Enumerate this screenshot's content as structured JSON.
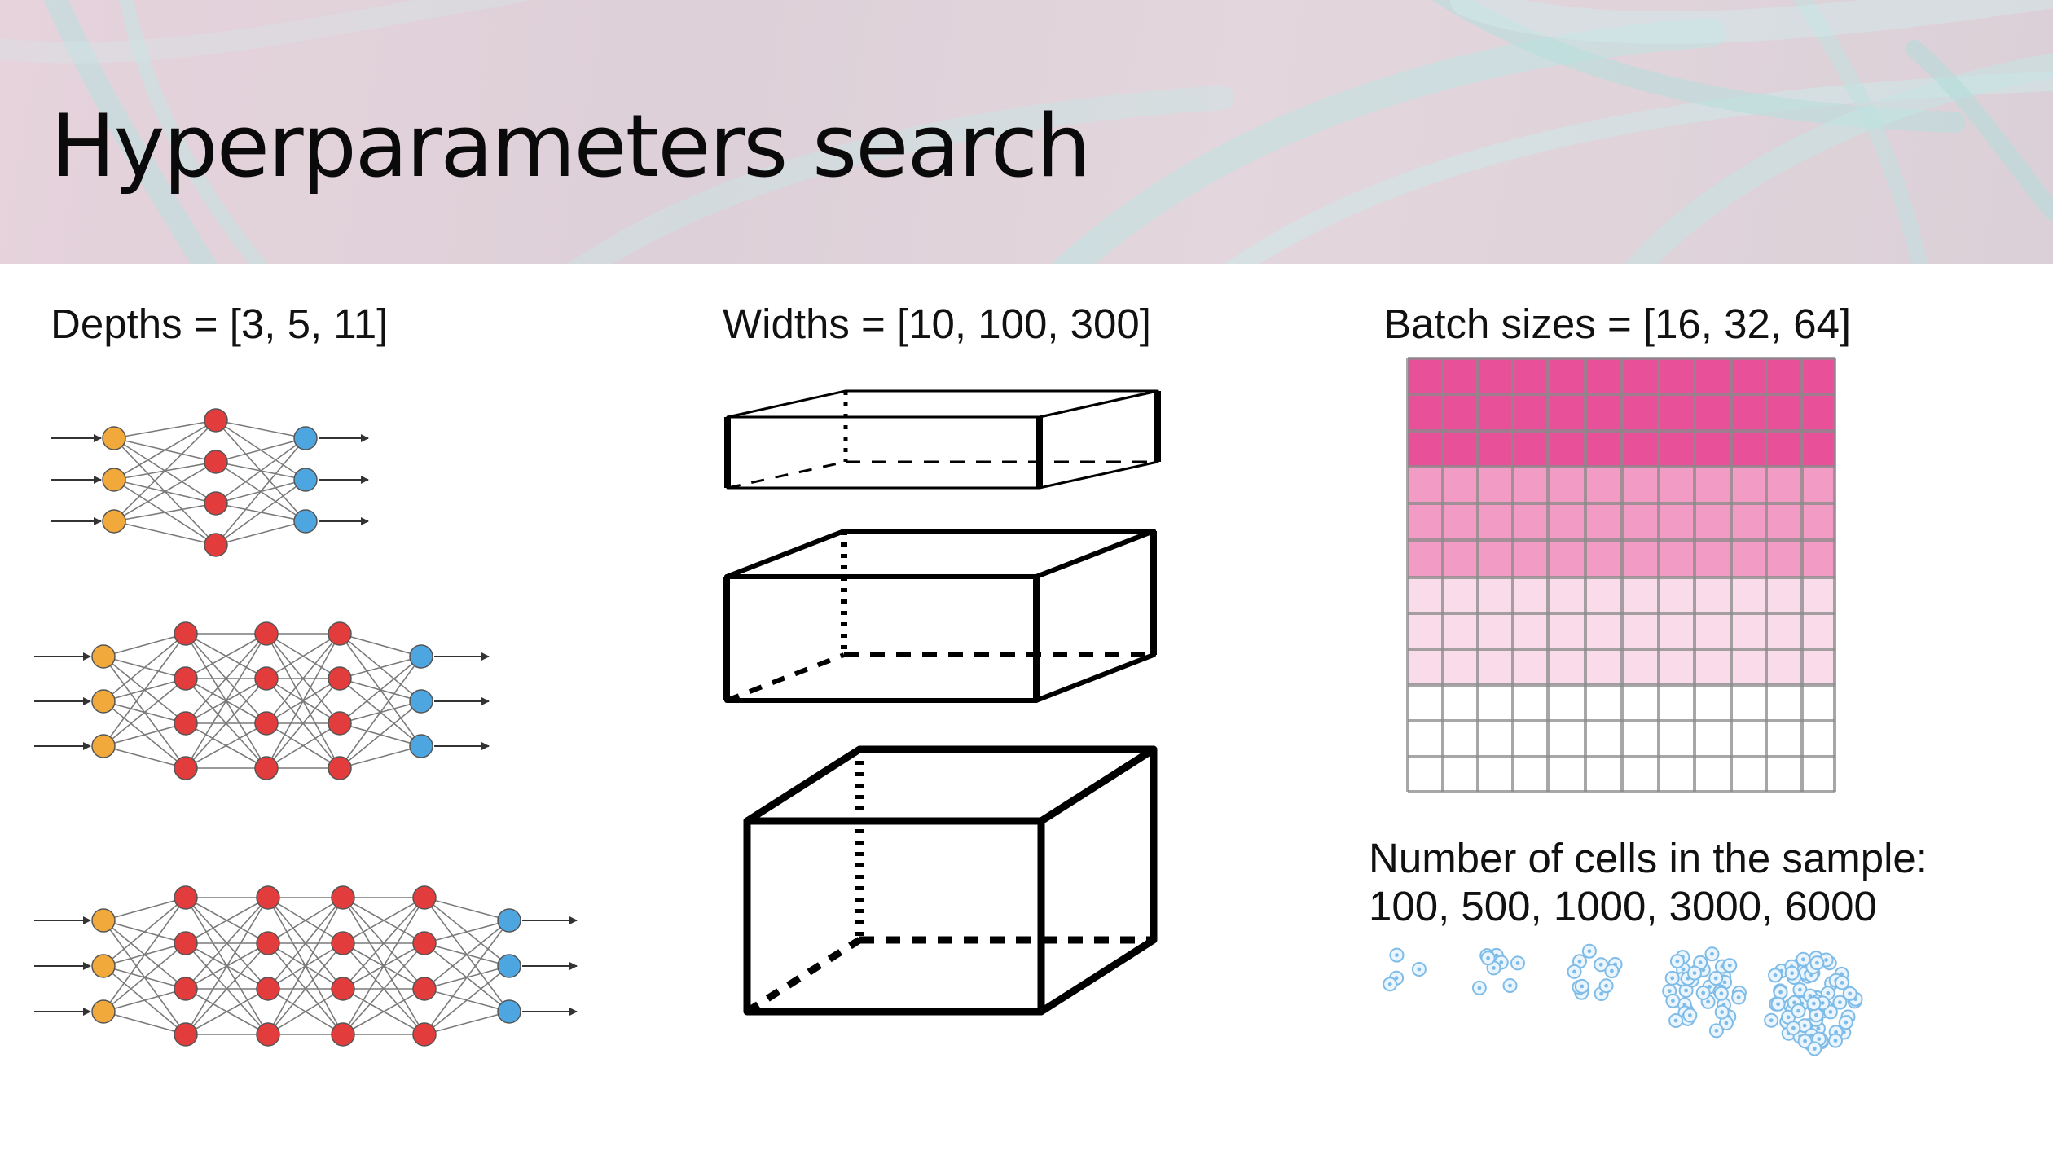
{
  "title": "Hyperparameters search",
  "depths_label": "Depths = [3, 5, 11]",
  "widths_label": "Widths = [10, 100, 300]",
  "batch_label": "Batch sizes = [16, 32, 64]",
  "cells_line1": "Number of cells in the sample:",
  "cells_line2": "100, 500, 1000, 3000, 6000",
  "colors": {
    "input_node": "#f0a93a",
    "hidden_node": "#e33c3c",
    "output_node": "#4ea6e0",
    "batch_dark": "#e8519a",
    "batch_medium": "#f29bc4",
    "batch_light": "#f9dbe9",
    "cell": "#7fbce8",
    "grid_line": "#8a8a8a"
  },
  "networks": [
    {
      "name": "shallow",
      "hidden_layers": 1
    },
    {
      "name": "medium",
      "hidden_layers": 3
    },
    {
      "name": "deep",
      "hidden_layers": 4
    }
  ],
  "boxes": [
    "thin",
    "medium",
    "wide"
  ],
  "batch_grid": {
    "bands": [
      "dark",
      "medium",
      "light",
      "empty"
    ]
  },
  "cell_clusters": [
    "100",
    "500",
    "1000",
    "3000",
    "6000"
  ]
}
